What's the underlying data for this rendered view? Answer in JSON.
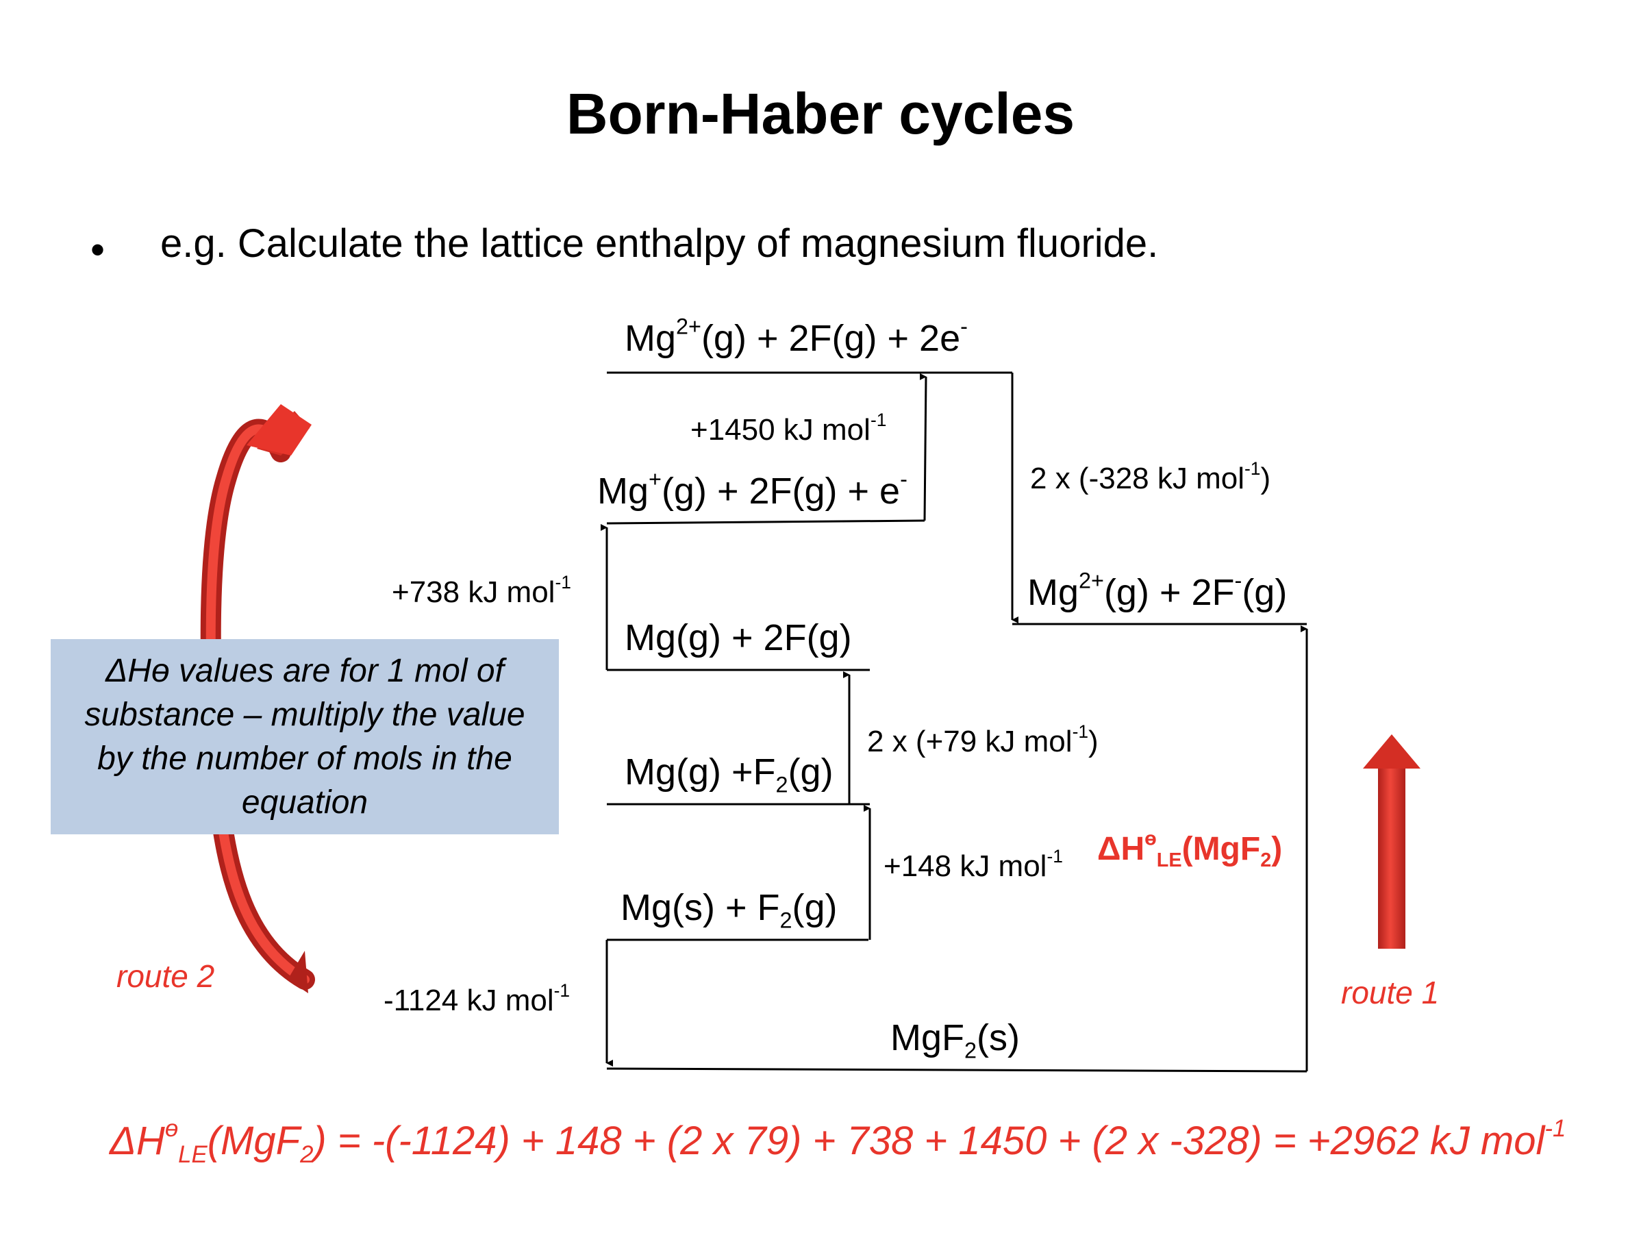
{
  "title": "Born-Haber cycles",
  "bullet": {
    "marker": "•",
    "text": "e.g. Calculate the lattice enthalpy of magnesium fluoride."
  },
  "levels": {
    "mg2_2f_2e": {
      "main": "Mg",
      "sup1": "2+",
      "mid": "(g) + 2F(g) + 2e",
      "sup2": "-"
    },
    "mg1_2f_e": {
      "main": "Mg",
      "sup1": "+",
      "mid": "(g) + 2F(g) + e",
      "sup2": "-"
    },
    "mg_2f": {
      "text": "Mg(g) + 2F(g)"
    },
    "mg_f2_gas": {
      "a": "Mg(g) +F",
      "sub": "2",
      "b": "(g)"
    },
    "mg_f2_solid": {
      "a": "Mg(s) + F",
      "sub": "2",
      "b": "(g)"
    },
    "mg2_2f_minus": {
      "a": "Mg",
      "sup1": "2+",
      "b": "(g) + 2F",
      "sup2": "-",
      "c": "(g)"
    },
    "mgf2_solid": {
      "a": "MgF",
      "sub": "2",
      "b": "(s)"
    }
  },
  "values": {
    "second_ionisation": {
      "text": "+1450 kJ mol",
      "sup": "-1"
    },
    "first_ionisation": {
      "text": "+738 kJ mol",
      "sup": "-1"
    },
    "atomisation_f": {
      "text": "2 x (+79 kJ mol",
      "sup": "-1",
      "after": ")"
    },
    "atomisation_mg": {
      "text": "+148 kJ mol",
      "sup": "-1"
    },
    "formation": {
      "text": "-1124 kJ mol",
      "sup": "-1"
    },
    "electron_affinity": {
      "text": "2 x (-328 kJ mol",
      "sup": "-1",
      "after": ")"
    }
  },
  "lattice_label": {
    "a": "ΔH",
    "theta": "ө",
    "sub": "LE",
    "b": "(MgF",
    "sub2": "2",
    "c": ")"
  },
  "note": "ΔHө values are for 1 mol of substance – multiply the value by the number of mols in the equation",
  "routes": {
    "route1": "route 1",
    "route2": "route 2"
  },
  "equation": {
    "a": "ΔH",
    "theta": "ө",
    "sub": "LE",
    "b": "(MgF",
    "sub2": "2",
    "c": ") = -(-1124) + 148 + (2 x 79) + 738 + 1450 + (2 x -328) = +2962 kJ mol",
    "sup": "-1"
  },
  "colors": {
    "accent_red": "#e8352b",
    "note_bg": "#bccde3",
    "line": "#000000"
  }
}
